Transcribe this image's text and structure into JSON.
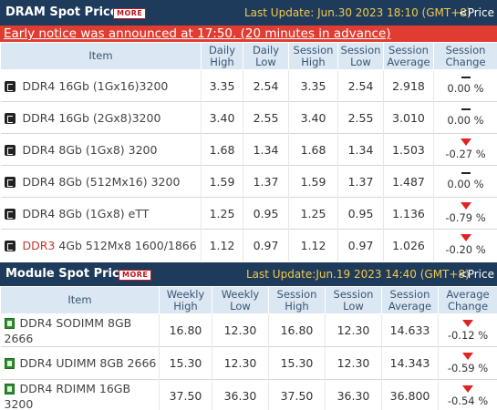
{
  "dram": {
    "title": "DRAM Spot Price",
    "more_label": "MORE",
    "last_update": "Last Update: Jun.30 2023 18:10 (GMT+8)",
    "price_label": "<Price",
    "notice": "Early notice was announced at 17:50. (20 minutes in advance)",
    "columns": [
      "Item",
      "Daily High",
      "Daily Low",
      "Session High",
      "Session Low",
      "Session Average",
      "Session Change"
    ],
    "rows": [
      {
        "prefix": "DDR4",
        "name": " 16Gb (1Gx16)3200",
        "daily_high": "3.35",
        "daily_low": "2.54",
        "session_high": "3.35",
        "session_low": "2.54",
        "session_average": "2.918",
        "change": "0.00 %",
        "trend": "flat"
      },
      {
        "prefix": "DDR4",
        "name": " 16Gb (2Gx8)3200",
        "daily_high": "3.40",
        "daily_low": "2.55",
        "session_high": "3.40",
        "session_low": "2.55",
        "session_average": "3.010",
        "change": "0.00 %",
        "trend": "flat"
      },
      {
        "prefix": "DDR4",
        "name": " 8Gb (1Gx8) 3200",
        "daily_high": "1.68",
        "daily_low": "1.34",
        "session_high": "1.68",
        "session_low": "1.34",
        "session_average": "1.503",
        "change": "-0.27 %",
        "trend": "down"
      },
      {
        "prefix": "DDR4",
        "name": " 8Gb (512Mx16) 3200",
        "daily_high": "1.59",
        "daily_low": "1.37",
        "session_high": "1.59",
        "session_low": "1.37",
        "session_average": "1.487",
        "change": "0.00 %",
        "trend": "flat"
      },
      {
        "prefix": "DDR4",
        "name": " 8Gb (1Gx8) eTT",
        "daily_high": "1.25",
        "daily_low": "0.95",
        "session_high": "1.25",
        "session_low": "0.95",
        "session_average": "1.136",
        "change": "-0.79 %",
        "trend": "down"
      },
      {
        "prefix": "DDR3",
        "name": " 4Gb 512Mx8 1600/1866",
        "daily_high": "1.12",
        "daily_low": "0.97",
        "session_high": "1.12",
        "session_low": "0.97",
        "session_average": "1.026",
        "change": "-0.20 %",
        "trend": "down"
      }
    ]
  },
  "module": {
    "title": "Module Spot Price",
    "more_label": "MORE",
    "last_update": "Last Update:Jun.19 2023 14:40 (GMT+8)",
    "price_label": "<Price",
    "columns": [
      "Item",
      "Weekly High",
      "Weekly Low",
      "Session High",
      "Session Low",
      "Session Average",
      "Average Change"
    ],
    "rows": [
      {
        "name": "DDR4 SODIMM 8GB 2666",
        "weekly_high": "16.80",
        "weekly_low": "12.30",
        "session_high": "16.80",
        "session_low": "12.30",
        "session_average": "14.633",
        "change": "-0.12 %",
        "trend": "down"
      },
      {
        "name": "DDR4 UDIMM 8GB 2666",
        "weekly_high": "15.30",
        "weekly_low": "12.30",
        "session_high": "15.30",
        "session_low": "12.30",
        "session_average": "14.343",
        "change": "-0.59 %",
        "trend": "down"
      },
      {
        "name": "DDR4 RDIMM 16GB 3200",
        "weekly_high": "37.50",
        "weekly_low": "36.30",
        "session_high": "37.50",
        "session_low": "36.30",
        "session_average": "36.800",
        "change": "-0.54 %",
        "trend": "down"
      }
    ]
  },
  "icons": {
    "dram_row": "chip-icon",
    "module_row": "memory-module-icon",
    "flat": "dash-icon",
    "down": "down-arrow-icon"
  },
  "colors": {
    "header_bg": "#1f3b5c",
    "update_text": "#f2c94c",
    "notice_bg": "#e03c31",
    "column_header_bg": "#dbe7f2",
    "down_arrow": "#e02424",
    "ddr3_prefix": "#c0392b"
  }
}
